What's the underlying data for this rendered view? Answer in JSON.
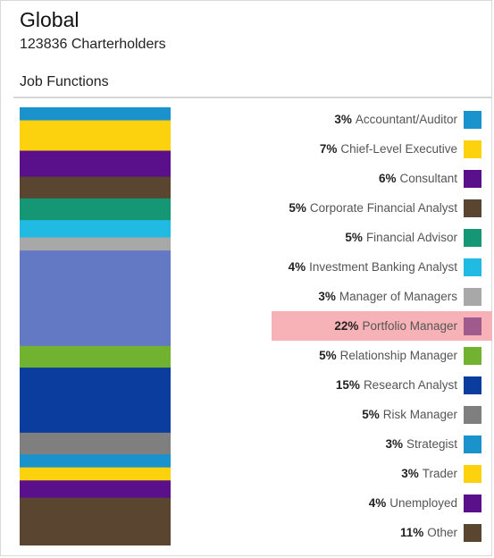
{
  "header": {
    "title": "Global",
    "subtitle": "123836 Charterholders",
    "section_label": "Job Functions"
  },
  "chart_data": {
    "type": "bar",
    "stacked": true,
    "legend_position": "right",
    "highlighted": "Portfolio Manager",
    "categories": [
      "Accountant/Auditor",
      "Chief-Level Executive",
      "Consultant",
      "Corporate Financial Analyst",
      "Financial Advisor",
      "Investment Banking Analyst",
      "Manager of Managers",
      "Portfolio Manager",
      "Relationship Manager",
      "Research Analyst",
      "Risk Manager",
      "Strategist",
      "Trader",
      "Unemployed",
      "Other"
    ],
    "values": [
      3,
      7,
      6,
      5,
      5,
      4,
      3,
      22,
      5,
      15,
      5,
      3,
      3,
      4,
      11
    ],
    "labels": [
      "3%",
      "7%",
      "6%",
      "5%",
      "5%",
      "4%",
      "3%",
      "22%",
      "5%",
      "15%",
      "5%",
      "3%",
      "3%",
      "4%",
      "11%"
    ],
    "colors": [
      "#1a92cc",
      "#fbd20d",
      "#5a108a",
      "#5a4630",
      "#159776",
      "#21bae3",
      "#a8a8a8",
      "#6379c4",
      "#71b230",
      "#0a3d9e",
      "#7f7f7f",
      "#1a92cc",
      "#fbd20d",
      "#5a108a",
      "#5a4630"
    ],
    "highlight_color": "#a05a8c"
  }
}
